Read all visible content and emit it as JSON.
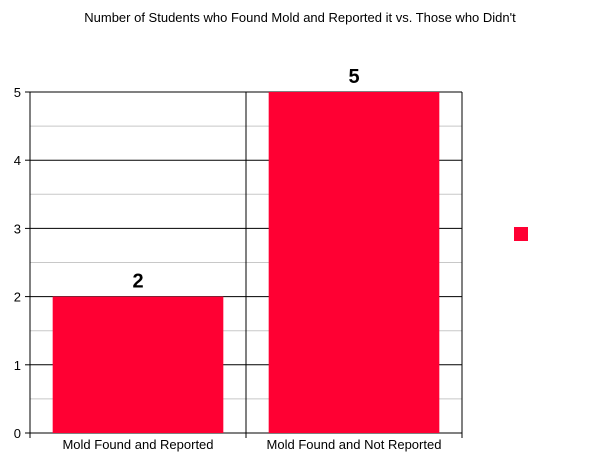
{
  "chart_data": {
    "type": "bar",
    "title": "Number of Students who Found Mold and Reported it vs. Those who Didn't",
    "categories": [
      "Mold Found and Reported",
      "Mold Found and Not Reported"
    ],
    "series": [
      {
        "values": [
          2,
          5
        ],
        "color": "#ff0033"
      }
    ],
    "data_labels": [
      "2",
      "5"
    ],
    "ylim": [
      0,
      5
    ],
    "yticks": [
      0,
      1,
      2,
      3,
      4,
      5
    ],
    "grid": true,
    "legend_position": "right",
    "xlabel": "",
    "ylabel": ""
  }
}
